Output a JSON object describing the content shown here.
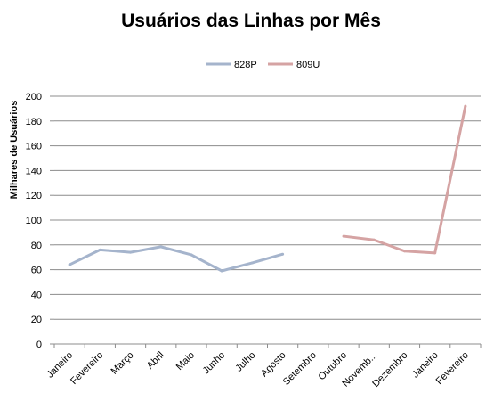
{
  "chart_data": {
    "type": "line",
    "title": "Usuários das Linhas por Mês",
    "xlabel": "",
    "ylabel": "Milhares de Usuários",
    "categories": [
      "Janeiro",
      "Fevereiro",
      "Março",
      "Abril",
      "Maio",
      "Junho",
      "Julho",
      "Agosto",
      "Setembro",
      "Outubro",
      "Novemb...",
      "Dezembro",
      "Janeiro",
      "Fevereiro"
    ],
    "series": [
      {
        "name": "828P",
        "color": "#a5b4cc",
        "values": [
          64,
          76,
          74,
          78.5,
          72,
          59,
          65.5,
          72.5,
          null,
          null,
          null,
          null,
          null,
          null
        ]
      },
      {
        "name": "809U",
        "color": "#d5a3a3",
        "values": [
          null,
          null,
          null,
          null,
          null,
          null,
          null,
          null,
          null,
          87,
          84,
          75,
          73.5,
          192
        ]
      }
    ],
    "ylim": [
      0,
      200
    ],
    "yticks": [
      0,
      20,
      40,
      60,
      80,
      100,
      120,
      140,
      160,
      180,
      200
    ],
    "grid": true,
    "legend_position": "top"
  }
}
